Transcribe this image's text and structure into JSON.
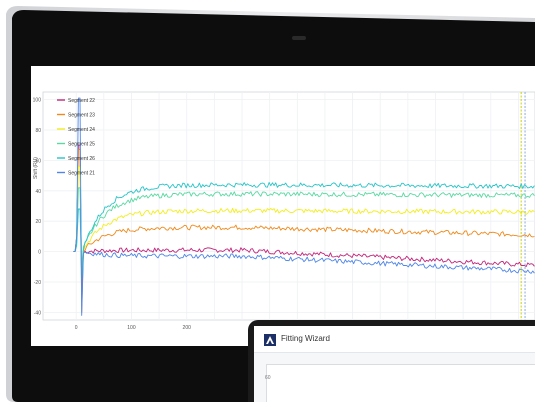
{
  "chart_data": {
    "type": "line",
    "ylabel": "Shift (RU)",
    "ylim": [
      -45,
      105
    ],
    "xlim": [
      -60,
      830
    ],
    "y_ticks": [
      "100",
      "80",
      "60",
      "40",
      "20",
      "0",
      "-20",
      "-40"
    ],
    "y_tick_values": [
      100,
      80,
      60,
      40,
      20,
      0,
      -20,
      -40
    ],
    "x_ticks": [
      "0",
      "100",
      "200"
    ],
    "x_tick_values": [
      0,
      100,
      200
    ],
    "grid": true,
    "legend_position": "top-left",
    "series": [
      {
        "name": "Segment 22",
        "color": "#c2247a",
        "plateau": 1,
        "end": -9
      },
      {
        "name": "Segment 23",
        "color": "#f08a1c",
        "plateau": 16,
        "end": 11
      },
      {
        "name": "Segment 24",
        "color": "#f2ee1d",
        "plateau": 27,
        "end": 26
      },
      {
        "name": "Segment 25",
        "color": "#5ad9a2",
        "plateau": 38,
        "end": 37
      },
      {
        "name": "Segment 26",
        "color": "#27c4c8",
        "plateau": 44,
        "end": 43
      },
      {
        "name": "Segment 21",
        "color": "#4f86e8",
        "plateau": -3,
        "end": -13
      }
    ],
    "marker_lines": [
      {
        "x": 805,
        "color": "#c9d400"
      },
      {
        "x": 812,
        "color": "#8da9e0"
      }
    ]
  },
  "wizard": {
    "title": "Fitting Wizard",
    "axis_tick": "60"
  }
}
